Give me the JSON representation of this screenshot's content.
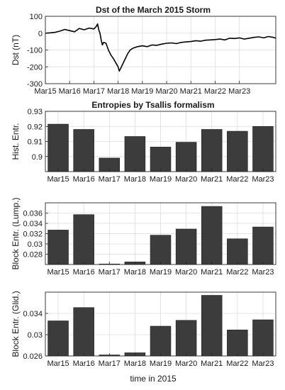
{
  "chart_data": [
    {
      "type": "line",
      "title": "Dst of the March 2015 Storm",
      "ylabel": "Dst (nT)",
      "xlabel": "",
      "xlim": [
        0,
        9.5
      ],
      "ylim": [
        -300,
        100
      ],
      "yticks": [
        100,
        0,
        -100,
        -200,
        -300
      ],
      "xtick_labels": [
        "Mar15",
        "Mar16",
        "Mar17",
        "Mar18",
        "Mar19",
        "Mar20",
        "Mar21",
        "Mar22",
        "Mar23"
      ],
      "grid": true,
      "series": [
        {
          "x": [
            0.0,
            0.2,
            0.4,
            0.6,
            0.8,
            1.0,
            1.2,
            1.4,
            1.6,
            1.8,
            2.0,
            2.1,
            2.15,
            2.2,
            2.25,
            2.3,
            2.35,
            2.4,
            2.5,
            2.6,
            2.7,
            2.8,
            2.9,
            3.0,
            3.05,
            3.1,
            3.2,
            3.3,
            3.4,
            3.5,
            3.6,
            3.8,
            4.0,
            4.2,
            4.4,
            4.6,
            4.8,
            5.0,
            5.2,
            5.4,
            5.6,
            5.8,
            6.0,
            6.2,
            6.4,
            6.6,
            6.8,
            7.0,
            7.2,
            7.4,
            7.6,
            7.8,
            8.0,
            8.2,
            8.4,
            8.6,
            8.8,
            9.0,
            9.2,
            9.4,
            9.5
          ],
          "y": [
            0,
            2,
            5,
            12,
            22,
            15,
            8,
            28,
            20,
            30,
            25,
            40,
            55,
            20,
            0,
            -40,
            -70,
            -55,
            -60,
            -100,
            -130,
            -150,
            -175,
            -200,
            -225,
            -210,
            -180,
            -150,
            -120,
            -100,
            -90,
            -80,
            -75,
            -80,
            -70,
            -72,
            -65,
            -60,
            -58,
            -62,
            -55,
            -52,
            -50,
            -45,
            -48,
            -42,
            -40,
            -38,
            -35,
            -40,
            -30,
            -32,
            -28,
            -35,
            -30,
            -25,
            -22,
            -28,
            -20,
            -25,
            -30
          ]
        }
      ]
    },
    {
      "type": "bar",
      "title": "Entropies by Tsallis formalism",
      "ylabel": "Hist. Entr.",
      "xlabel": "",
      "categories": [
        "Mar15",
        "Mar16",
        "Mar17",
        "Mar18",
        "Mar19",
        "Mar20",
        "Mar21",
        "Mar22",
        "Mar23"
      ],
      "values": [
        0.9215,
        0.918,
        0.899,
        0.9133,
        0.9063,
        0.9095,
        0.918,
        0.9168,
        0.92
      ],
      "ylim": [
        0.89,
        0.93
      ],
      "yticks": [
        0.9,
        0.91,
        0.92,
        0.93
      ],
      "ytick_labels": [
        "0.9",
        "0.91",
        "0.92",
        "0.93"
      ],
      "grid": true
    },
    {
      "type": "bar",
      "title": "",
      "ylabel": "Block Entr. (Lump.)",
      "xlabel": "",
      "categories": [
        "Mar15",
        "Mar16",
        "Mar17",
        "Mar18",
        "Mar19",
        "Mar20",
        "Mar21",
        "Mar22",
        "Mar23"
      ],
      "values": [
        0.0327,
        0.0357,
        0.0261,
        0.0265,
        0.0317,
        0.0329,
        0.0373,
        0.031,
        0.0333
      ],
      "ylim": [
        0.026,
        0.038
      ],
      "yticks": [
        0.028,
        0.03,
        0.032,
        0.034,
        0.036
      ],
      "ytick_labels": [
        "0.028",
        "0.03",
        "0.032",
        "0.034",
        "0.036"
      ],
      "grid": true
    },
    {
      "type": "bar",
      "title": "",
      "ylabel": "Block Entr. (Glid.)",
      "xlabel": "time in 2015",
      "categories": [
        "Mar15",
        "Mar16",
        "Mar17",
        "Mar18",
        "Mar19",
        "Mar20",
        "Mar21",
        "Mar22",
        "Mar23"
      ],
      "values": [
        0.0326,
        0.0351,
        0.0262,
        0.0266,
        0.0316,
        0.0327,
        0.0374,
        0.0309,
        0.0328
      ],
      "ylim": [
        0.026,
        0.038
      ],
      "yticks": [
        0.026,
        0.03,
        0.034
      ],
      "ytick_labels": [
        "0.026",
        "0.03",
        "0.034"
      ],
      "grid": true
    }
  ]
}
